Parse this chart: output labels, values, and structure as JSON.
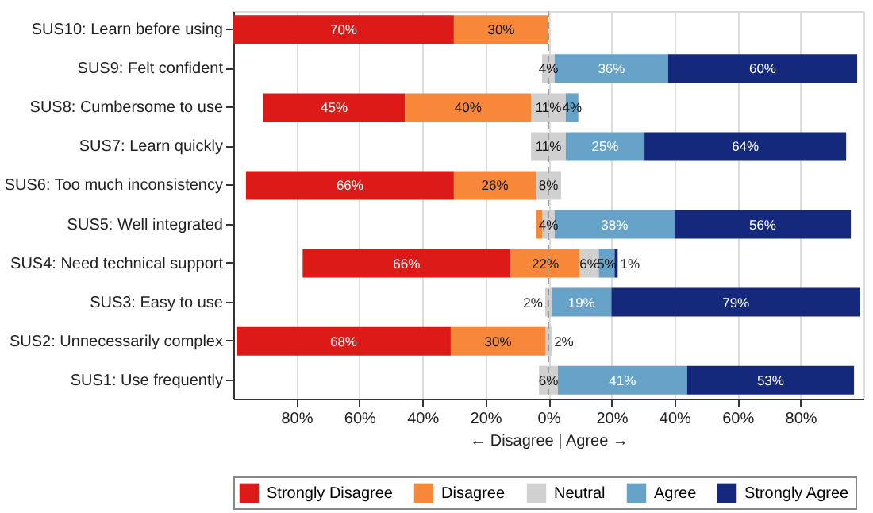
{
  "chart_data": {
    "type": "bar",
    "orientation": "horizontal",
    "categories": [
      "SUS10: Learn before using",
      "SUS9: Felt confident",
      "SUS8: Cumbersome to use",
      "SUS7: Learn quickly",
      "SUS6: Too much inconsistency",
      "SUS5: Well integrated",
      "SUS4: Need technical support",
      "SUS3: Easy to use",
      "SUS2: Unnecessarily complex",
      "SUS1: Use frequently"
    ],
    "series": [
      {
        "name": "Strongly Disagree",
        "color": "#dc1a17",
        "values": [
          70,
          null,
          45,
          null,
          66,
          null,
          66,
          null,
          68,
          null
        ],
        "base": [
          -100,
          null,
          -90.5,
          null,
          -96,
          null,
          -78,
          null,
          -99,
          null
        ],
        "value_labels": [
          "70%",
          null,
          "45%",
          null,
          "66%",
          null,
          "66%",
          null,
          "68%",
          null
        ]
      },
      {
        "name": "Disagree",
        "color": "#f7883a",
        "values": [
          30,
          null,
          40,
          null,
          26,
          2,
          22,
          null,
          30,
          null
        ],
        "base": [
          -30,
          null,
          -45.5,
          null,
          -30,
          -4,
          -12,
          null,
          -31,
          null
        ],
        "value_labels": [
          "30%",
          null,
          "40%",
          null,
          "26%",
          null,
          "22%",
          null,
          "30%",
          null
        ]
      },
      {
        "name": "Neutral",
        "color": "#d0d0d0",
        "values": [
          null,
          4,
          11,
          11,
          8,
          4,
          6,
          2,
          2,
          6
        ],
        "base": [
          null,
          -2,
          -5.5,
          -5.5,
          -4,
          -2,
          10,
          -1,
          -1,
          -3
        ],
        "value_labels": [
          null,
          "4%",
          "11%",
          "11%",
          "8%",
          "4%",
          "6%",
          "2%",
          "2%",
          "6%"
        ]
      },
      {
        "name": "Agree",
        "color": "#67a3c8",
        "values": [
          null,
          36,
          4,
          25,
          null,
          38,
          5,
          19,
          null,
          41
        ],
        "base": [
          null,
          2,
          5.5,
          5.5,
          null,
          2,
          16,
          1,
          null,
          3
        ],
        "value_labels": [
          null,
          "36%",
          "4%",
          "25%",
          null,
          "38%",
          "5%",
          "19%",
          null,
          "41%"
        ]
      },
      {
        "name": "Strongly Agree",
        "color": "#15297c",
        "values": [
          null,
          60,
          null,
          64,
          null,
          56,
          1,
          79,
          null,
          53
        ],
        "base": [
          null,
          38,
          null,
          30.5,
          null,
          40,
          21,
          20,
          null,
          44
        ],
        "value_labels": [
          null,
          "60%",
          null,
          "64%",
          null,
          "56%",
          "1%",
          "79%",
          null,
          "53%"
        ]
      }
    ],
    "xlim": [
      -100,
      100
    ],
    "xticks": [
      {
        "value": -80,
        "label": "80%"
      },
      {
        "value": -60,
        "label": "60%"
      },
      {
        "value": -40,
        "label": "40%"
      },
      {
        "value": -20,
        "label": "20%"
      },
      {
        "value": 0,
        "label": "0%"
      },
      {
        "value": 20,
        "label": "20%"
      },
      {
        "value": 40,
        "label": "40%"
      },
      {
        "value": 60,
        "label": "60%"
      },
      {
        "value": 80,
        "label": "80%"
      }
    ],
    "xlabel": "← Disagree   |   Agree →",
    "ref_lines": [
      {
        "axis": "x",
        "value": 0,
        "color": "#999999",
        "line_style": "dashed"
      }
    ],
    "grid": "x",
    "legend": "bottom"
  }
}
